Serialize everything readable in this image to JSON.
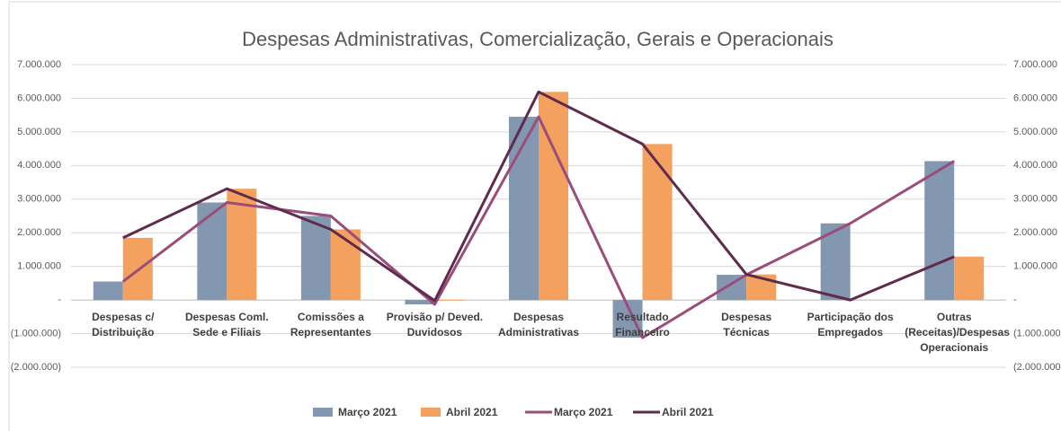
{
  "chart_data": {
    "type": "bar-line",
    "title": "Despesas Administrativas, Comercialização, Gerais e Operacionais",
    "categories": [
      "Despesas c/ Distribuição",
      "Despesas Coml. Sede e Filiais",
      "Comissões a Representantes",
      "Provisão p/ Deved. Duvidosos",
      "Despesas Administrativas",
      "Resultado Financeiro",
      "Despesas  Técnicas",
      "Participação dos Empregados",
      "Outras (Receitas)/Despesas Operacionais"
    ],
    "series": [
      {
        "name": "Março 2021",
        "kind": "bar",
        "color": "#8497b0",
        "values": [
          550000,
          2900000,
          2500000,
          -130000,
          5450000,
          -1120000,
          750000,
          2280000,
          4130000
        ]
      },
      {
        "name": "Abril 2021",
        "kind": "bar",
        "color": "#f4a15f",
        "values": [
          1850000,
          3310000,
          2100000,
          -20000,
          6190000,
          4640000,
          760000,
          0,
          1290000
        ]
      },
      {
        "name": "Março 2021",
        "kind": "line",
        "axis": "y2",
        "color": "#9a4d7a",
        "values": [
          550000,
          2900000,
          2500000,
          -130000,
          5450000,
          -1120000,
          750000,
          2280000,
          4130000
        ]
      },
      {
        "name": "Abril 2021",
        "kind": "line",
        "axis": "y2",
        "color": "#5e2b4c",
        "values": [
          1850000,
          3310000,
          2100000,
          -20000,
          6190000,
          4640000,
          760000,
          0,
          1290000
        ]
      }
    ],
    "ylim": [
      -2000000,
      7000000
    ],
    "yticks": [
      {
        "value": -2000000,
        "label": "(2.000.000)"
      },
      {
        "value": -1000000,
        "label": "(1.000.000)"
      },
      {
        "value": 0,
        "label": "-"
      },
      {
        "value": 1000000,
        "label": "1.000.000"
      },
      {
        "value": 2000000,
        "label": "2.000.000"
      },
      {
        "value": 3000000,
        "label": "3.000.000"
      },
      {
        "value": 4000000,
        "label": "4.000.000"
      },
      {
        "value": 5000000,
        "label": "5.000.000"
      },
      {
        "value": 6000000,
        "label": "6.000.000"
      },
      {
        "value": 7000000,
        "label": "7.000.000"
      }
    ],
    "y2lim": [
      -2000000,
      7000000
    ],
    "y2ticks": [
      {
        "value": -2000000,
        "label": "(2.000.000"
      },
      {
        "value": -1000000,
        "label": "(1.000.000"
      },
      {
        "value": 0,
        "label": "-"
      },
      {
        "value": 1000000,
        "label": "1.000.000"
      },
      {
        "value": 2000000,
        "label": "2.000.000"
      },
      {
        "value": 3000000,
        "label": "3.000.000"
      },
      {
        "value": 4000000,
        "label": "4.000.000"
      },
      {
        "value": 5000000,
        "label": "5.000.000"
      },
      {
        "value": 6000000,
        "label": "6.000.000"
      },
      {
        "value": 7000000,
        "label": "7.000.000"
      }
    ],
    "grid": true
  }
}
